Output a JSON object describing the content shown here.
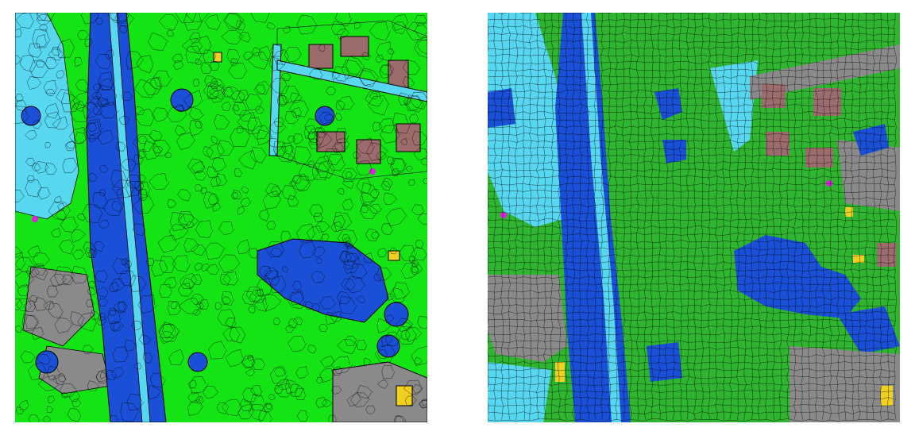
{
  "figure": {
    "panels": [
      {
        "id": "left",
        "description_name": "segmentation-map-left"
      },
      {
        "id": "right",
        "description_name": "superpixel-classification-map-right"
      }
    ],
    "colors": {
      "vegetation": "#1fd81f",
      "vegetation_alt": "#2db52d",
      "water_dark": "#1a4fd8",
      "water_light": "#4fd0f0",
      "building": "#9c6b6b",
      "road": "#8a8a8a",
      "highlight": "#f0d020",
      "accent": "#e020e0",
      "edge": "#000000"
    }
  }
}
